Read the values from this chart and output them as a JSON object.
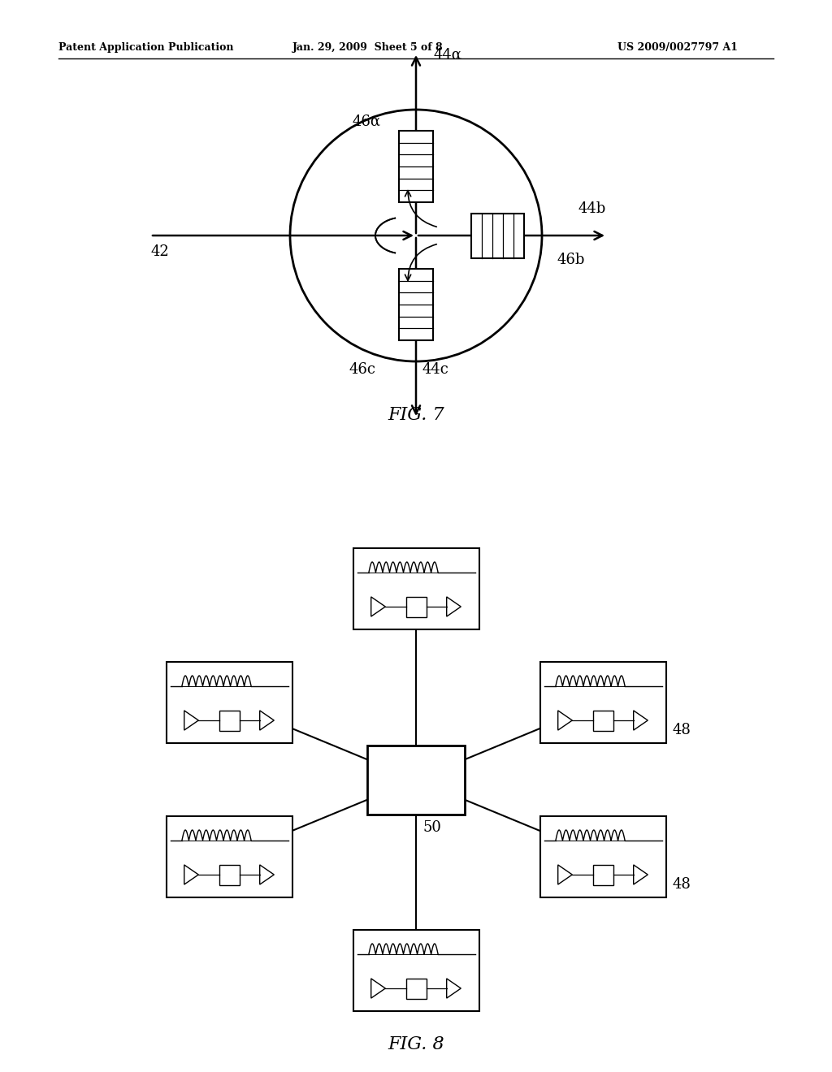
{
  "bg_color": "#ffffff",
  "header_left": "Patent Application Publication",
  "header_mid": "Jan. 29, 2009  Sheet 5 of 8",
  "header_right": "US 2009/0027797 A1",
  "fig7_title": "FIG. 7",
  "fig8_title": "FIG. 8"
}
